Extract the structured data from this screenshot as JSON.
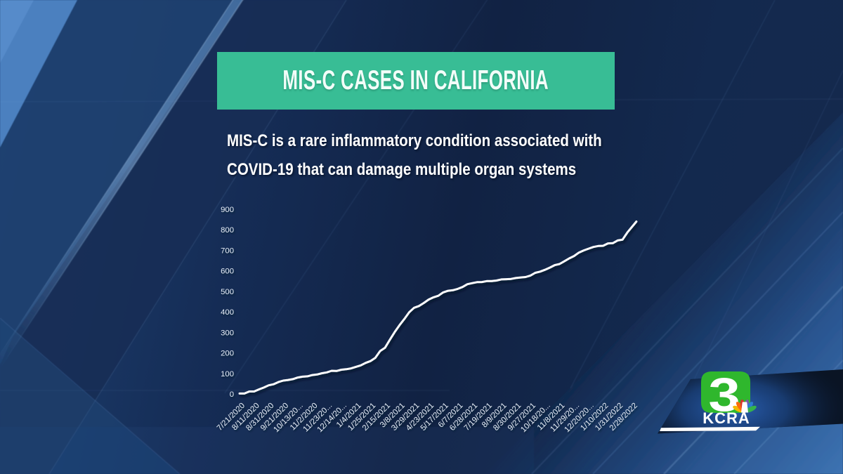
{
  "banner": {
    "title": "MIS-C CASES IN CALIFORNIA",
    "bg_color": "#38bd95",
    "text_color": "#ffffff"
  },
  "subtitle": {
    "line1": "MIS-C is a rare inflammatory condition associated with",
    "line2": "COVID-19 that can damage multiple organ systems",
    "text_color": "#ffffff"
  },
  "chart_data": {
    "type": "line",
    "title": "MIS-C CASES IN CALIFORNIA",
    "xlabel": "",
    "ylabel": "",
    "x": [
      "7/21/2020",
      "8/11/2020",
      "8/31/2020",
      "9/21/2020",
      "10/13/20...",
      "11/2/2020",
      "11/23/20...",
      "12/14/20...",
      "1/4/2021",
      "1/25/2021",
      "2/15/2021",
      "3/8/2021",
      "3/29/2021",
      "4/23/2021",
      "5/17/2021",
      "6/7/2021",
      "6/28/2021",
      "7/19/2021",
      "8/9/2021",
      "8/30/2021",
      "9/27/2021",
      "10/18/20...",
      "11/8/2021",
      "11/29/20...",
      "12/20/20...",
      "1/10/2022",
      "1/31/2022",
      "2/28/2022"
    ],
    "series": [
      {
        "name": "MIS-C cases",
        "values": [
          2,
          12,
          42,
          65,
          80,
          92,
          105,
          118,
          132,
          160,
          225,
          335,
          420,
          460,
          495,
          512,
          540,
          550,
          558,
          565,
          577,
          605,
          633,
          672,
          708,
          722,
          748,
          840
        ]
      }
    ],
    "ylim": [
      0,
      900
    ],
    "yticks": [
      0,
      100,
      200,
      300,
      400,
      500,
      600,
      700,
      800,
      900
    ],
    "grid": false,
    "legend": false,
    "line_color": "#ffffff",
    "tick_label_color": "#e2eaf5"
  },
  "logo": {
    "channel_number": "3",
    "station": "KCRA",
    "green": "#2fb72d",
    "peacock_colors": [
      "#f5b800",
      "#fc6b0a",
      "#d6342a",
      "#7a5aa8",
      "#2e7bd2",
      "#35b44a"
    ],
    "band_color": "#0b1a36",
    "underline_color": "#ffffff"
  },
  "background": {
    "base_navy": "#13294e",
    "light_blue_band": "#3d72b0",
    "corner_wedge": "#4a81c3"
  }
}
